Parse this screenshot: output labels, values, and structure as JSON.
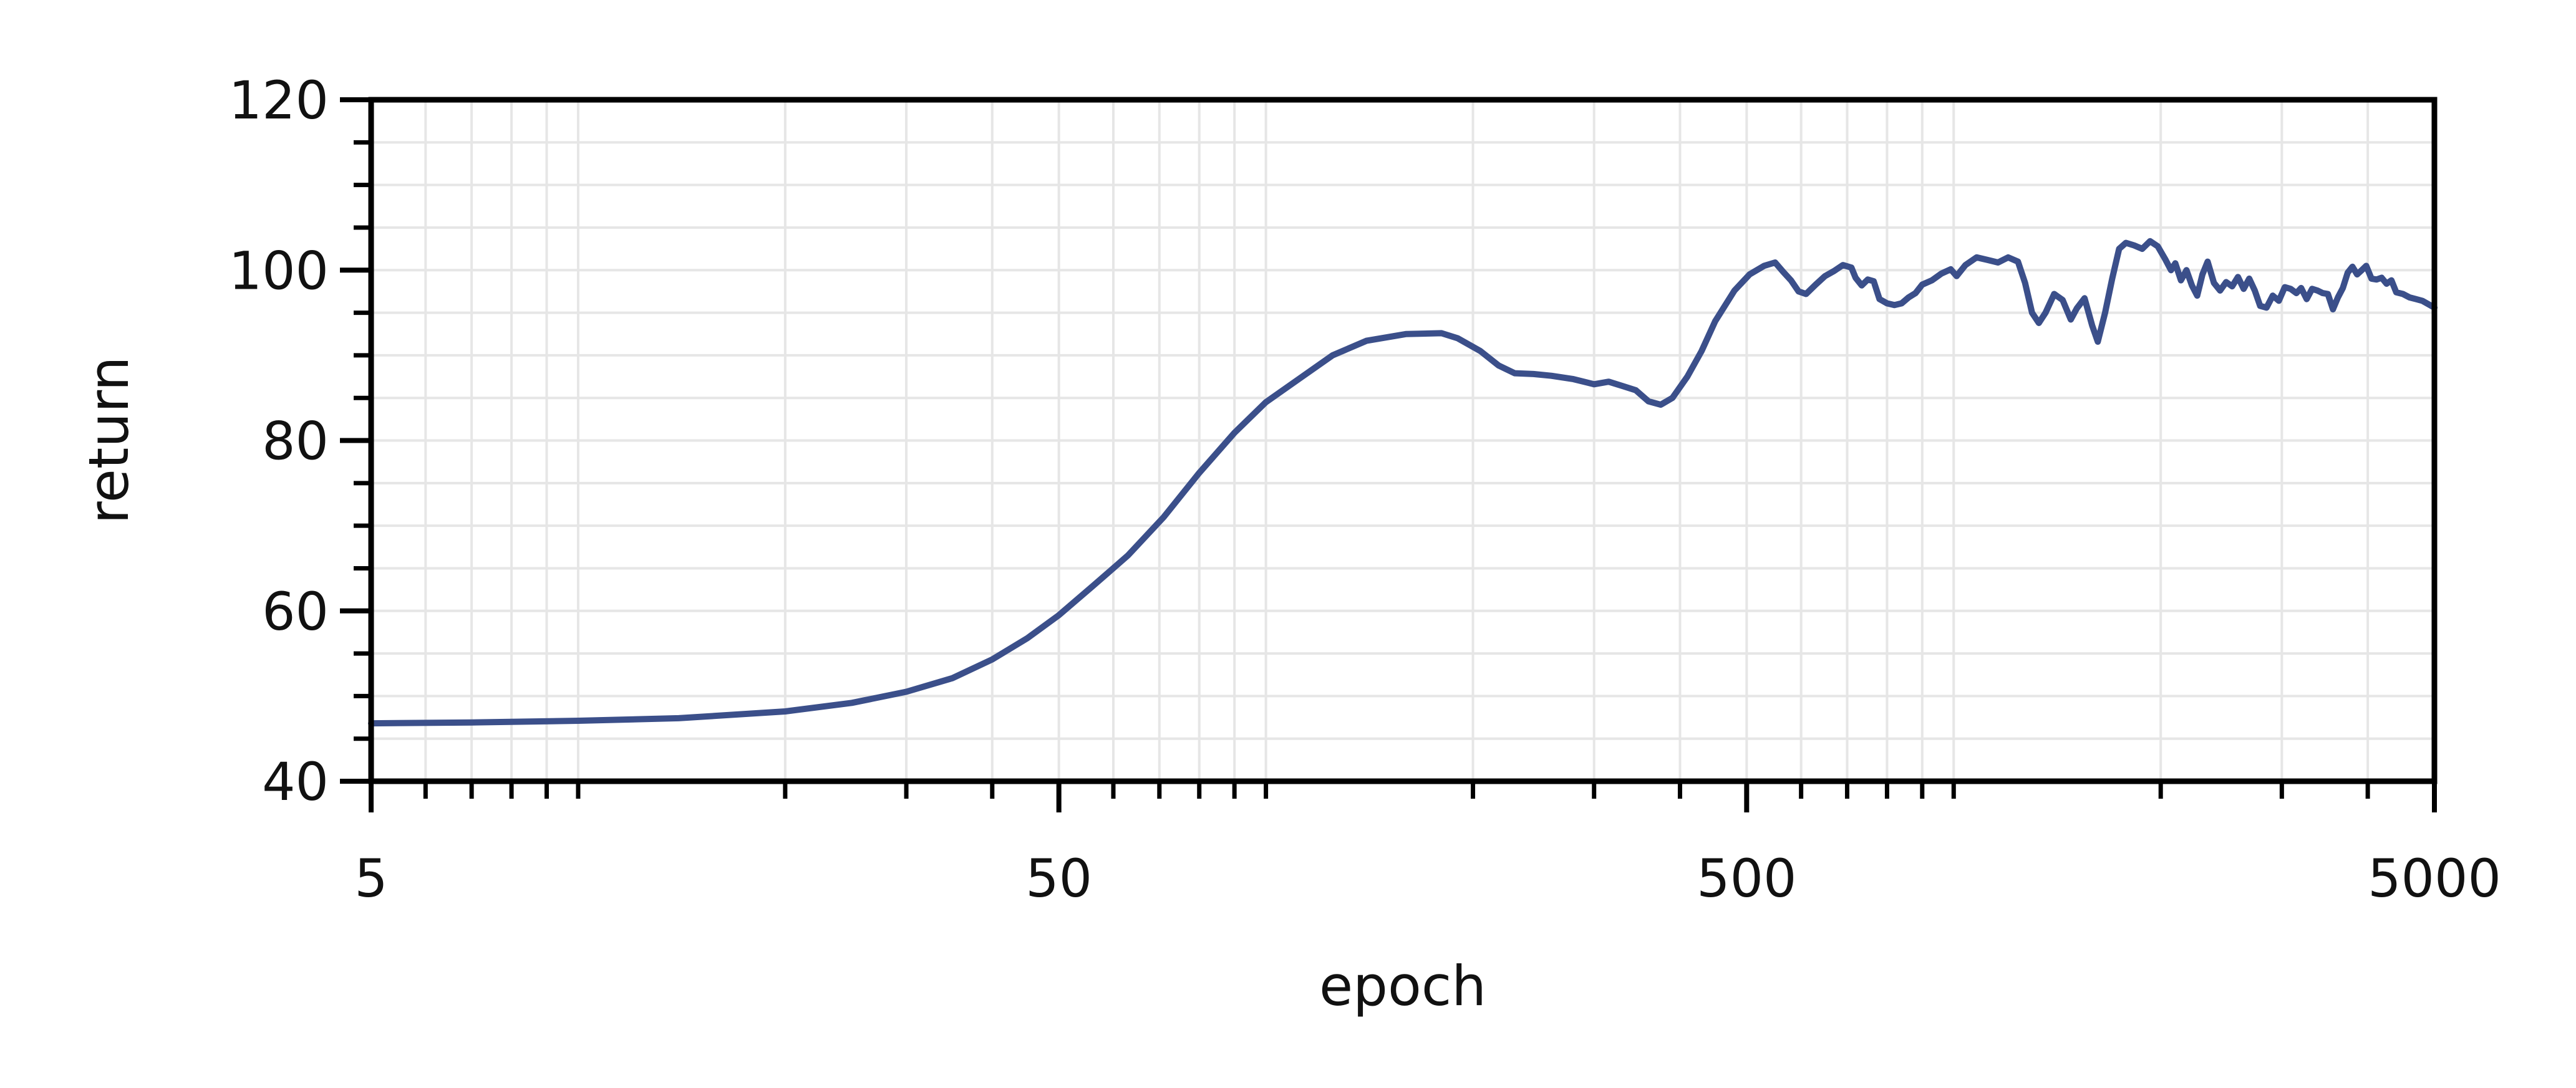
{
  "chart_data": {
    "type": "line",
    "title": "",
    "xlabel": "epoch",
    "ylabel": "return",
    "xscale": "log",
    "xlim": [
      5,
      5000
    ],
    "ylim": [
      40,
      120
    ],
    "grid": true,
    "x_ticks": [
      5,
      50,
      500,
      5000
    ],
    "x_tick_labels": [
      "5",
      "50",
      "500",
      "5000"
    ],
    "y_ticks": [
      40,
      60,
      80,
      100,
      120
    ],
    "y_tick_labels": [
      "40",
      "60",
      "80",
      "100",
      "120"
    ],
    "colors": {
      "line": "#3b4f8a",
      "axis": "#000000",
      "grid": "#e6e6e6"
    },
    "series": [
      {
        "points": [
          [
            5,
            46.8
          ],
          [
            7,
            46.9
          ],
          [
            10,
            47.1
          ],
          [
            14,
            47.4
          ],
          [
            20,
            48.2
          ],
          [
            25,
            49.2
          ],
          [
            30,
            50.5
          ],
          [
            35,
            52.1
          ],
          [
            40,
            54.3
          ],
          [
            45,
            56.8
          ],
          [
            50,
            59.5
          ],
          [
            56,
            62.9
          ],
          [
            63,
            66.5
          ],
          [
            71,
            71.0
          ],
          [
            80,
            76.2
          ],
          [
            90,
            80.9
          ],
          [
            100,
            84.5
          ],
          [
            112,
            87.3
          ],
          [
            125,
            90.0
          ],
          [
            140,
            91.7
          ],
          [
            160,
            92.5
          ],
          [
            180,
            92.6
          ],
          [
            190,
            92.0
          ],
          [
            205,
            90.5
          ],
          [
            218,
            88.8
          ],
          [
            230,
            87.9
          ],
          [
            245,
            87.8
          ],
          [
            260,
            87.6
          ],
          [
            280,
            87.2
          ],
          [
            300,
            86.6
          ],
          [
            315,
            86.9
          ],
          [
            330,
            86.4
          ],
          [
            345,
            85.9
          ],
          [
            360,
            84.6
          ],
          [
            375,
            84.2
          ],
          [
            390,
            85.0
          ],
          [
            410,
            87.5
          ],
          [
            430,
            90.5
          ],
          [
            450,
            94.0
          ],
          [
            480,
            97.6
          ],
          [
            505,
            99.5
          ],
          [
            530,
            100.5
          ],
          [
            550,
            100.9
          ],
          [
            565,
            99.8
          ],
          [
            580,
            98.8
          ],
          [
            595,
            97.5
          ],
          [
            610,
            97.2
          ],
          [
            630,
            98.3
          ],
          [
            650,
            99.3
          ],
          [
            670,
            99.9
          ],
          [
            690,
            100.6
          ],
          [
            710,
            100.3
          ],
          [
            720,
            99.1
          ],
          [
            735,
            98.2
          ],
          [
            750,
            98.9
          ],
          [
            765,
            98.7
          ],
          [
            780,
            96.6
          ],
          [
            800,
            96.1
          ],
          [
            820,
            95.9
          ],
          [
            840,
            96.1
          ],
          [
            860,
            96.8
          ],
          [
            880,
            97.3
          ],
          [
            900,
            98.3
          ],
          [
            930,
            98.8
          ],
          [
            960,
            99.6
          ],
          [
            990,
            100.1
          ],
          [
            1010,
            99.3
          ],
          [
            1040,
            100.6
          ],
          [
            1080,
            101.5
          ],
          [
            1120,
            101.2
          ],
          [
            1160,
            100.9
          ],
          [
            1200,
            101.5
          ],
          [
            1240,
            101.0
          ],
          [
            1270,
            98.5
          ],
          [
            1300,
            95.0
          ],
          [
            1330,
            93.8
          ],
          [
            1360,
            95.0
          ],
          [
            1400,
            97.2
          ],
          [
            1440,
            96.5
          ],
          [
            1480,
            94.2
          ],
          [
            1510,
            95.5
          ],
          [
            1550,
            96.7
          ],
          [
            1590,
            93.5
          ],
          [
            1620,
            91.6
          ],
          [
            1660,
            95.0
          ],
          [
            1700,
            99.0
          ],
          [
            1740,
            102.5
          ],
          [
            1780,
            103.2
          ],
          [
            1830,
            102.9
          ],
          [
            1880,
            102.5
          ],
          [
            1930,
            103.4
          ],
          [
            1980,
            102.8
          ],
          [
            2030,
            101.3
          ],
          [
            2070,
            100.0
          ],
          [
            2100,
            100.8
          ],
          [
            2140,
            98.8
          ],
          [
            2180,
            100.0
          ],
          [
            2220,
            98.2
          ],
          [
            2260,
            97.0
          ],
          [
            2300,
            99.5
          ],
          [
            2340,
            101.0
          ],
          [
            2390,
            98.5
          ],
          [
            2440,
            97.6
          ],
          [
            2490,
            98.6
          ],
          [
            2540,
            98.1
          ],
          [
            2590,
            99.2
          ],
          [
            2640,
            97.8
          ],
          [
            2690,
            99.0
          ],
          [
            2740,
            97.6
          ],
          [
            2790,
            95.8
          ],
          [
            2850,
            95.6
          ],
          [
            2910,
            97.0
          ],
          [
            2970,
            96.4
          ],
          [
            3030,
            98.0
          ],
          [
            3090,
            97.8
          ],
          [
            3150,
            97.3
          ],
          [
            3200,
            97.9
          ],
          [
            3260,
            96.6
          ],
          [
            3320,
            97.8
          ],
          [
            3380,
            97.6
          ],
          [
            3440,
            97.3
          ],
          [
            3500,
            97.2
          ],
          [
            3560,
            95.4
          ],
          [
            3620,
            96.8
          ],
          [
            3680,
            97.9
          ],
          [
            3740,
            99.7
          ],
          [
            3800,
            100.4
          ],
          [
            3860,
            99.5
          ],
          [
            3920,
            100.0
          ],
          [
            3980,
            100.5
          ],
          [
            4050,
            99.0
          ],
          [
            4120,
            98.9
          ],
          [
            4190,
            99.1
          ],
          [
            4260,
            98.4
          ],
          [
            4330,
            98.8
          ],
          [
            4400,
            97.4
          ],
          [
            4500,
            97.2
          ],
          [
            4600,
            96.8
          ],
          [
            4700,
            96.6
          ],
          [
            4800,
            96.4
          ],
          [
            4900,
            96.0
          ],
          [
            5000,
            95.6
          ]
        ]
      }
    ]
  }
}
